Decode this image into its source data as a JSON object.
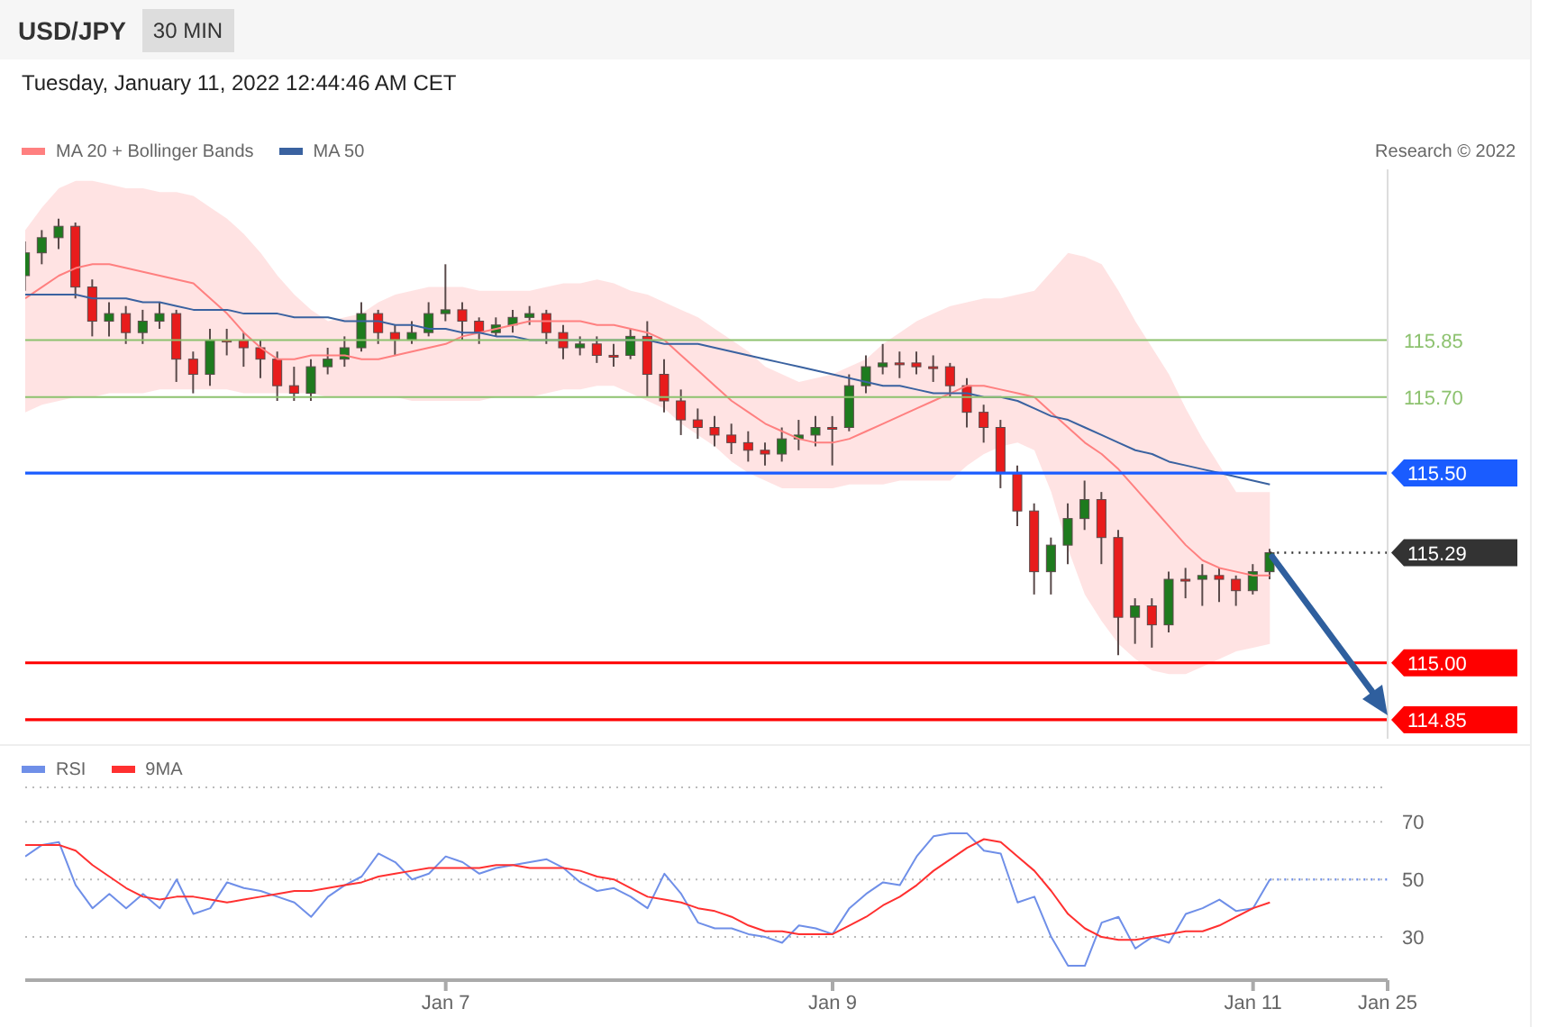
{
  "chart_data": [
    {
      "type": "candlestick",
      "title": "USD/JPY",
      "subtitle": "Tuesday, January 11, 2022 12:44:46 AM CET",
      "annotations": [
        "30 MIN",
        "Research © 2022"
      ],
      "categories": [
        null,
        null,
        null,
        null,
        null,
        null,
        null,
        null,
        null,
        null,
        null,
        null,
        null,
        null,
        null,
        null,
        null,
        null,
        null,
        null,
        null,
        null,
        null,
        null,
        null,
        null,
        null,
        null,
        null,
        null,
        null,
        null,
        null,
        null,
        null,
        null,
        null,
        null,
        null,
        null,
        null,
        null,
        null,
        null,
        null,
        null,
        null,
        null,
        null,
        null,
        null,
        null,
        null,
        null,
        null,
        null,
        null,
        null,
        null,
        null,
        null,
        null,
        null,
        null,
        null,
        null,
        null,
        null,
        null,
        null,
        null,
        null,
        null,
        null,
        null,
        null,
        null,
        null,
        null,
        null,
        null,
        null
      ],
      "ohlc": [
        [
          116.02,
          116.11,
          115.98,
          116.08
        ],
        [
          116.08,
          116.14,
          116.05,
          116.12
        ],
        [
          116.12,
          116.17,
          116.09,
          116.15
        ],
        [
          116.15,
          116.16,
          115.96,
          115.99
        ],
        [
          115.99,
          116.01,
          115.86,
          115.9
        ],
        [
          115.9,
          115.95,
          115.86,
          115.92
        ],
        [
          115.92,
          115.94,
          115.84,
          115.87
        ],
        [
          115.87,
          115.93,
          115.84,
          115.9
        ],
        [
          115.9,
          115.95,
          115.88,
          115.92
        ],
        [
          115.92,
          115.93,
          115.74,
          115.8
        ],
        [
          115.8,
          115.82,
          115.71,
          115.76
        ],
        [
          115.76,
          115.88,
          115.73,
          115.85
        ],
        [
          115.85,
          115.88,
          115.81,
          115.85
        ],
        [
          115.85,
          115.87,
          115.78,
          115.83
        ],
        [
          115.83,
          115.85,
          115.75,
          115.8
        ],
        [
          115.8,
          115.82,
          115.69,
          115.73
        ],
        [
          115.73,
          115.78,
          115.69,
          115.71
        ],
        [
          115.71,
          115.8,
          115.69,
          115.78
        ],
        [
          115.78,
          115.83,
          115.76,
          115.8
        ],
        [
          115.8,
          115.86,
          115.78,
          115.83
        ],
        [
          115.83,
          115.95,
          115.82,
          115.92
        ],
        [
          115.92,
          115.93,
          115.84,
          115.87
        ],
        [
          115.87,
          115.89,
          115.81,
          115.85
        ],
        [
          115.85,
          115.9,
          115.84,
          115.87
        ],
        [
          115.87,
          115.95,
          115.86,
          115.92
        ],
        [
          115.92,
          116.05,
          115.9,
          115.93
        ],
        [
          115.93,
          115.95,
          115.85,
          115.9
        ],
        [
          115.9,
          115.91,
          115.84,
          115.87
        ],
        [
          115.87,
          115.91,
          115.86,
          115.89
        ],
        [
          115.89,
          115.93,
          115.87,
          115.91
        ],
        [
          115.91,
          115.94,
          115.89,
          115.92
        ],
        [
          115.92,
          115.93,
          115.84,
          115.87
        ],
        [
          115.87,
          115.89,
          115.8,
          115.83
        ],
        [
          115.83,
          115.86,
          115.81,
          115.84
        ],
        [
          115.84,
          115.86,
          115.79,
          115.81
        ],
        [
          115.81,
          115.84,
          115.78,
          115.81
        ],
        [
          115.81,
          115.88,
          115.8,
          115.86
        ],
        [
          115.86,
          115.9,
          115.7,
          115.76
        ],
        [
          115.76,
          115.8,
          115.66,
          115.69
        ],
        [
          115.69,
          115.72,
          115.6,
          115.64
        ],
        [
          115.64,
          115.67,
          115.59,
          115.62
        ],
        [
          115.62,
          115.65,
          115.57,
          115.6
        ],
        [
          115.6,
          115.63,
          115.55,
          115.58
        ],
        [
          115.58,
          115.61,
          115.53,
          115.56
        ],
        [
          115.56,
          115.58,
          115.52,
          115.55
        ],
        [
          115.55,
          115.62,
          115.53,
          115.59
        ],
        [
          115.59,
          115.64,
          115.56,
          115.6
        ],
        [
          115.6,
          115.65,
          115.57,
          115.62
        ],
        [
          115.62,
          115.65,
          115.52,
          115.62
        ],
        [
          115.62,
          115.76,
          115.61,
          115.73
        ],
        [
          115.73,
          115.81,
          115.71,
          115.78
        ],
        [
          115.78,
          115.84,
          115.76,
          115.79
        ],
        [
          115.79,
          115.82,
          115.75,
          115.79
        ],
        [
          115.79,
          115.82,
          115.76,
          115.78
        ],
        [
          115.78,
          115.81,
          115.74,
          115.78
        ],
        [
          115.78,
          115.79,
          115.7,
          115.73
        ],
        [
          115.73,
          115.75,
          115.62,
          115.66
        ],
        [
          115.66,
          115.68,
          115.58,
          115.62
        ],
        [
          115.62,
          115.64,
          115.46,
          115.5
        ],
        [
          115.5,
          115.52,
          115.36,
          115.4
        ],
        [
          115.4,
          115.42,
          115.18,
          115.24
        ],
        [
          115.24,
          115.33,
          115.18,
          115.31
        ],
        [
          115.31,
          115.42,
          115.26,
          115.38
        ],
        [
          115.38,
          115.48,
          115.35,
          115.43
        ],
        [
          115.43,
          115.45,
          115.26,
          115.33
        ],
        [
          115.33,
          115.35,
          115.02,
          115.12
        ],
        [
          115.12,
          115.17,
          115.05,
          115.15
        ],
        [
          115.15,
          115.17,
          115.04,
          115.1
        ],
        [
          115.1,
          115.24,
          115.08,
          115.22
        ],
        [
          115.22,
          115.25,
          115.17,
          115.22
        ],
        [
          115.22,
          115.26,
          115.15,
          115.23
        ],
        [
          115.23,
          115.25,
          115.16,
          115.22
        ],
        [
          115.22,
          115.23,
          115.15,
          115.19
        ],
        [
          115.19,
          115.26,
          115.18,
          115.24
        ],
        [
          115.24,
          115.3,
          115.22,
          115.29
        ],
        null,
        null,
        null,
        null,
        null,
        null,
        null
      ],
      "colors": [
        "#1e7b1e",
        "#1e7b1e",
        "#1e7b1e",
        "#e81c1c",
        "#e81c1c",
        "#1e7b1e",
        "#e81c1c",
        "#1e7b1e",
        "#1e7b1e",
        "#e81c1c",
        "#e81c1c",
        "#1e7b1e",
        "#e81c1c",
        "#e81c1c",
        "#e81c1c",
        "#e81c1c",
        "#e81c1c",
        "#1e7b1e",
        "#1e7b1e",
        "#1e7b1e",
        "#1e7b1e",
        "#e81c1c",
        "#e81c1c",
        "#1e7b1e",
        "#1e7b1e",
        "#1e7b1e",
        "#e81c1c",
        "#e81c1c",
        "#1e7b1e",
        "#1e7b1e",
        "#1e7b1e",
        "#e81c1c",
        "#e81c1c",
        "#1e7b1e",
        "#e81c1c",
        "#e81c1c",
        "#1e7b1e",
        "#e81c1c",
        "#e81c1c",
        "#e81c1c",
        "#e81c1c",
        "#e81c1c",
        "#e81c1c",
        "#e81c1c",
        "#e81c1c",
        "#1e7b1e",
        "#1e7b1e",
        "#1e7b1e",
        "#e81c1c",
        "#1e7b1e",
        "#1e7b1e",
        "#1e7b1e",
        "#e81c1c",
        "#e81c1c",
        "#e81c1c",
        "#e81c1c",
        "#e81c1c",
        "#e81c1c",
        "#e81c1c",
        "#e81c1c",
        "#e81c1c",
        "#1e7b1e",
        "#1e7b1e",
        "#1e7b1e",
        "#e81c1c",
        "#e81c1c",
        "#1e7b1e",
        "#e81c1c",
        "#1e7b1e",
        "#e81c1c",
        "#1e7b1e",
        "#e81c1c",
        "#e81c1c",
        "#1e7b1e",
        "#1e7b1e",
        null,
        null,
        null,
        null,
        null,
        null,
        null
      ],
      "series": [
        {
          "type": "line",
          "name": "MA 20 + Bollinger Bands",
          "color": "#ff8080",
          "values": [
            115.96,
            115.99,
            116.02,
            116.04,
            116.05,
            116.05,
            116.04,
            116.03,
            116.02,
            116.01,
            116.0,
            115.96,
            115.92,
            115.87,
            115.83,
            115.8,
            115.8,
            115.81,
            115.81,
            115.81,
            115.8,
            115.8,
            115.81,
            115.82,
            115.83,
            115.84,
            115.86,
            115.87,
            115.88,
            115.89,
            115.9,
            115.9,
            115.9,
            115.9,
            115.89,
            115.89,
            115.88,
            115.87,
            115.85,
            115.81,
            115.77,
            115.73,
            115.69,
            115.66,
            115.63,
            115.61,
            115.59,
            115.58,
            115.58,
            115.59,
            115.61,
            115.63,
            115.65,
            115.67,
            115.69,
            115.71,
            115.73,
            115.73,
            115.72,
            115.71,
            115.7,
            115.66,
            115.62,
            115.58,
            115.55,
            115.51,
            115.46,
            115.41,
            115.36,
            115.31,
            115.27,
            115.25,
            115.24,
            115.23,
            115.23,
            null,
            null,
            null,
            null,
            null,
            null,
            null
          ],
          "lower": [
            115.66,
            115.68,
            115.69,
            115.7,
            115.7,
            115.71,
            115.71,
            115.71,
            115.72,
            115.72,
            115.72,
            115.72,
            115.72,
            115.71,
            115.71,
            115.71,
            115.71,
            115.71,
            115.7,
            115.7,
            115.7,
            115.7,
            115.7,
            115.69,
            115.69,
            115.69,
            115.69,
            115.69,
            115.7,
            115.7,
            115.7,
            115.71,
            115.72,
            115.72,
            115.73,
            115.73,
            115.71,
            115.69,
            115.67,
            115.63,
            115.6,
            115.57,
            115.53,
            115.5,
            115.48,
            115.46,
            115.46,
            115.46,
            115.46,
            115.47,
            115.47,
            115.47,
            115.48,
            115.48,
            115.48,
            115.48,
            115.52,
            115.55,
            115.57,
            115.58,
            115.56,
            115.45,
            115.3,
            115.18,
            115.11,
            115.05,
            115.01,
            114.98,
            114.97,
            114.97,
            114.99,
            115.01,
            115.03,
            115.04,
            115.05,
            null,
            null,
            null,
            null,
            null,
            null,
            null
          ],
          "upper": [
            116.14,
            116.2,
            116.25,
            116.27,
            116.27,
            116.26,
            116.25,
            116.25,
            116.24,
            116.24,
            116.23,
            116.2,
            116.17,
            116.13,
            116.08,
            116.02,
            115.97,
            115.93,
            115.9,
            115.91,
            115.92,
            115.95,
            115.97,
            115.98,
            115.99,
            115.99,
            115.99,
            115.98,
            115.98,
            115.98,
            115.98,
            115.99,
            116.0,
            116.0,
            116.01,
            116.0,
            115.98,
            115.97,
            115.95,
            115.93,
            115.91,
            115.88,
            115.85,
            115.82,
            115.78,
            115.76,
            115.74,
            115.75,
            115.76,
            115.78,
            115.8,
            115.84,
            115.87,
            115.9,
            115.92,
            115.94,
            115.95,
            115.96,
            115.96,
            115.97,
            115.98,
            116.03,
            116.08,
            116.07,
            116.05,
            115.98,
            115.9,
            115.83,
            115.76,
            115.67,
            115.59,
            115.52,
            115.45,
            115.45,
            115.45,
            null,
            null,
            null,
            null,
            null,
            null,
            null
          ]
        },
        {
          "type": "line",
          "name": "MA 50",
          "color": "#3a62a0",
          "values": [
            115.97,
            115.97,
            115.97,
            115.97,
            115.96,
            115.96,
            115.96,
            115.95,
            115.95,
            115.94,
            115.93,
            115.93,
            115.93,
            115.92,
            115.92,
            115.92,
            115.91,
            115.91,
            115.91,
            115.9,
            115.9,
            115.9,
            115.89,
            115.89,
            115.88,
            115.88,
            115.87,
            115.87,
            115.86,
            115.86,
            115.85,
            115.85,
            115.85,
            115.85,
            115.85,
            115.85,
            115.85,
            115.85,
            115.84,
            115.84,
            115.84,
            115.83,
            115.82,
            115.81,
            115.8,
            115.79,
            115.78,
            115.77,
            115.76,
            115.75,
            115.74,
            115.73,
            115.73,
            115.72,
            115.71,
            115.71,
            115.71,
            115.7,
            115.7,
            115.69,
            115.67,
            115.65,
            115.64,
            115.62,
            115.6,
            115.58,
            115.56,
            115.55,
            115.53,
            115.52,
            115.51,
            115.5,
            115.49,
            115.48,
            115.47,
            null,
            null,
            null,
            null,
            null,
            null,
            null
          ]
        }
      ],
      "ylim": [
        114.8,
        116.3
      ],
      "ref_lines": [
        {
          "axis": "y",
          "value": 115.85,
          "label": "115.85",
          "color": "#8dc26f"
        },
        {
          "axis": "y",
          "value": 115.7,
          "label": "115.70",
          "color": "#8dc26f"
        },
        {
          "axis": "y",
          "value": 115.5,
          "label": "115.50",
          "color": "#1a5cff"
        },
        {
          "axis": "y",
          "value": 115.29,
          "label": "115.29",
          "color": "#333333",
          "line_style": "dotted"
        },
        {
          "axis": "y",
          "value": 115,
          "label": "115.00",
          "color": "#ff0000"
        },
        {
          "axis": "y",
          "value": 114.85,
          "label": "114.85",
          "color": "#ff0000"
        }
      ],
      "legend": "top left",
      "tick_labels": false
    },
    {
      "type": "line",
      "categories": [
        null,
        null,
        null,
        null,
        null,
        null,
        null,
        null,
        null,
        null,
        null,
        null,
        null,
        null,
        null,
        null,
        null,
        null,
        null,
        null,
        null,
        null,
        null,
        null,
        null,
        "Jan 7",
        null,
        null,
        null,
        null,
        null,
        null,
        null,
        null,
        null,
        null,
        null,
        null,
        null,
        null,
        null,
        null,
        null,
        null,
        null,
        null,
        null,
        null,
        "Jan 9",
        null,
        null,
        null,
        null,
        null,
        null,
        null,
        null,
        null,
        null,
        null,
        null,
        null,
        null,
        null,
        null,
        null,
        null,
        null,
        null,
        null,
        null,
        null,
        null,
        "Jan 11",
        null,
        null,
        null,
        null,
        null,
        null,
        null,
        "Jan 25"
      ],
      "series": [
        {
          "name": "RSI",
          "color": "#6f8fe8",
          "values": [
            58,
            62,
            63,
            48,
            40,
            45,
            40,
            45,
            40,
            50,
            38,
            40,
            49,
            47,
            46,
            44,
            42,
            37,
            44,
            48,
            51,
            59,
            56,
            50,
            52,
            58,
            56,
            52,
            54,
            55,
            56,
            57,
            54,
            49,
            46,
            47,
            44,
            40,
            52,
            45,
            35,
            33,
            33,
            31,
            30,
            28,
            34,
            33,
            31,
            40,
            45,
            49,
            48,
            58,
            65,
            66,
            66,
            60,
            59,
            42,
            44,
            30,
            20,
            20,
            35,
            37,
            26,
            30,
            28,
            38,
            40,
            43,
            39,
            40,
            50,
            null,
            null,
            null,
            null,
            null,
            null,
            null
          ]
        },
        {
          "name": "9MA",
          "color": "#ff3030",
          "values": [
            62,
            62,
            62,
            60,
            55,
            51,
            47,
            44,
            43,
            44,
            44,
            43,
            42,
            43,
            44,
            45,
            46,
            46,
            47,
            48,
            49,
            51,
            52,
            53,
            54,
            54,
            54,
            54,
            55,
            55,
            54,
            54,
            54,
            53,
            51,
            50,
            47,
            44,
            43,
            42,
            40,
            39,
            37,
            34,
            32,
            32,
            31,
            31,
            31,
            34,
            37,
            41,
            44,
            48,
            53,
            57,
            61,
            64,
            63,
            58,
            53,
            46,
            38,
            33,
            30,
            29,
            29,
            30,
            31,
            32,
            32,
            34,
            37,
            40,
            42,
            null,
            null,
            null,
            null,
            null,
            null,
            null
          ]
        }
      ],
      "ylim": [
        15,
        82
      ],
      "yticks": [
        30,
        50,
        70
      ],
      "grid": "y",
      "legend": "top left",
      "ref_lines": [
        {
          "axis": "y",
          "value": 50,
          "color": "#6f8fe8",
          "line_style": "dotted"
        }
      ]
    }
  ]
}
